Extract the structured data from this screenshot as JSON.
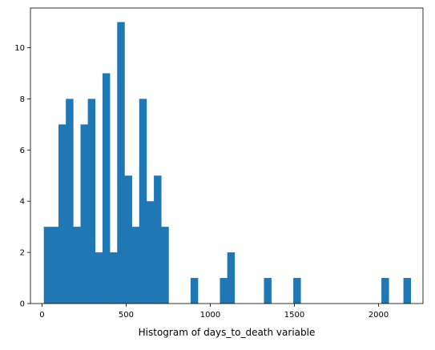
{
  "chart_data": {
    "type": "bar",
    "title": "",
    "xlabel": "Histogram of days_to_death variable",
    "ylabel": "",
    "bar_color": "#1f77b4",
    "grid": false,
    "xlim": [
      -68.5,
      2264
    ],
    "ylim": [
      0,
      11.55
    ],
    "x_ticks": [
      0,
      500,
      1000,
      1500,
      2000
    ],
    "y_ticks": [
      0,
      2,
      4,
      6,
      8,
      10
    ],
    "bins": [
      {
        "start": 11.0,
        "end": 54.6,
        "count": 3
      },
      {
        "start": 54.6,
        "end": 98.2,
        "count": 3
      },
      {
        "start": 98.2,
        "end": 141.8,
        "count": 7
      },
      {
        "start": 141.8,
        "end": 185.4,
        "count": 8
      },
      {
        "start": 185.4,
        "end": 229.0,
        "count": 3
      },
      {
        "start": 229.0,
        "end": 272.6,
        "count": 7
      },
      {
        "start": 272.6,
        "end": 316.2,
        "count": 8
      },
      {
        "start": 316.2,
        "end": 359.8,
        "count": 2
      },
      {
        "start": 359.8,
        "end": 403.4,
        "count": 9
      },
      {
        "start": 403.4,
        "end": 447.0,
        "count": 2
      },
      {
        "start": 447.0,
        "end": 490.6,
        "count": 11
      },
      {
        "start": 490.6,
        "end": 534.2,
        "count": 5
      },
      {
        "start": 534.2,
        "end": 577.8,
        "count": 3
      },
      {
        "start": 577.8,
        "end": 621.4,
        "count": 8
      },
      {
        "start": 621.4,
        "end": 665.0,
        "count": 4
      },
      {
        "start": 665.0,
        "end": 708.6,
        "count": 5
      },
      {
        "start": 708.6,
        "end": 752.2,
        "count": 3
      },
      {
        "start": 883.0,
        "end": 926.6,
        "count": 1
      },
      {
        "start": 1057.4,
        "end": 1101.0,
        "count": 1
      },
      {
        "start": 1101.0,
        "end": 1144.6,
        "count": 2
      },
      {
        "start": 1319.0,
        "end": 1362.6,
        "count": 1
      },
      {
        "start": 1493.4,
        "end": 1537.0,
        "count": 1
      },
      {
        "start": 2017.0,
        "end": 2060.6,
        "count": 1
      },
      {
        "start": 2147.8,
        "end": 2191.4,
        "count": 1
      }
    ]
  }
}
